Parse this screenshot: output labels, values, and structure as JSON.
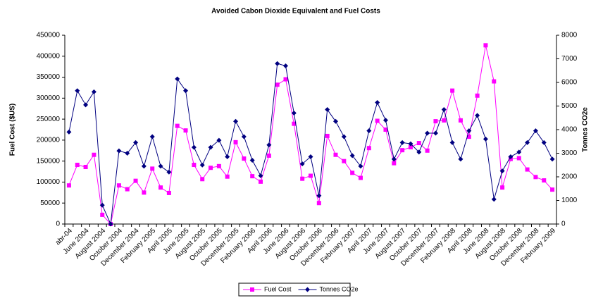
{
  "chart_data": {
    "type": "line",
    "title": "Avoided Cabon Dioxide Equivalent and Fuel Costs",
    "y_label": "Fuel Cost ($US)",
    "y2_label": "Tonnes CO2e",
    "categories": [
      "abr-04",
      null,
      "June 2004",
      null,
      "August 2004",
      null,
      "October 2004",
      null,
      "December 2004",
      null,
      "February 2005",
      null,
      "April 2005",
      null,
      "June 2005",
      null,
      "August 2005",
      null,
      "October 2005",
      null,
      "December 2005",
      null,
      "February 2006",
      null,
      "April 2006",
      null,
      "June 2006",
      null,
      "August 2006",
      null,
      "October 2006",
      null,
      "December 2006",
      null,
      "February 2007",
      null,
      "April 2007",
      null,
      "June 2007",
      null,
      "August 2007",
      null,
      "October 2007",
      null,
      "December 2007",
      null,
      "February 2008",
      null,
      "April 2008",
      null,
      "June 2008",
      null,
      "August 2008",
      null,
      "October 2008",
      null,
      "December 2008",
      null,
      "February 2009"
    ],
    "series": [
      {
        "name": "Fuel Cost",
        "color": "#ff00ff",
        "marker": "square",
        "axis": "y",
        "values": [
          92000,
          141000,
          136000,
          165000,
          22000,
          0,
          92000,
          83000,
          103000,
          75000,
          132000,
          87000,
          74000,
          234000,
          223000,
          141000,
          107000,
          134000,
          138000,
          113000,
          195000,
          156000,
          114000,
          101000,
          163000,
          332000,
          345000,
          239000,
          108000,
          115000,
          50000,
          210000,
          165000,
          150000,
          122000,
          110000,
          181000,
          246000,
          225000,
          145000,
          176000,
          183000,
          193000,
          175000,
          245000,
          247000,
          318000,
          247000,
          208000,
          306000,
          426000,
          340000,
          87000,
          155000,
          157000,
          130000,
          112000,
          104000,
          82000
        ]
      },
      {
        "name": "Tonnes CO2e",
        "color": "#000080",
        "marker": "diamond",
        "axis": "y2",
        "values": [
          3900,
          5650,
          5050,
          5600,
          800,
          0,
          3100,
          3000,
          3450,
          2450,
          3700,
          2450,
          2200,
          6150,
          5650,
          3250,
          2500,
          3250,
          3550,
          2850,
          4350,
          3700,
          2700,
          2050,
          3350,
          6800,
          6700,
          4700,
          2550,
          2850,
          1200,
          4850,
          4350,
          3700,
          2900,
          2450,
          3950,
          5150,
          4400,
          2750,
          3450,
          3400,
          3050,
          3850,
          3850,
          4850,
          3450,
          2750,
          3950,
          4600,
          3600,
          1050,
          2250,
          2850,
          3050,
          3450,
          3950,
          3450,
          2750
        ]
      }
    ],
    "ylim": [
      0,
      450000
    ],
    "yticks": [
      0,
      50000,
      100000,
      150000,
      200000,
      250000,
      300000,
      350000,
      400000,
      450000
    ],
    "y2lim": [
      0,
      8000
    ],
    "y2ticks": [
      0,
      1000,
      2000,
      3000,
      4000,
      5000,
      6000,
      7000,
      8000
    ],
    "grid": false,
    "legend": "bottom"
  }
}
